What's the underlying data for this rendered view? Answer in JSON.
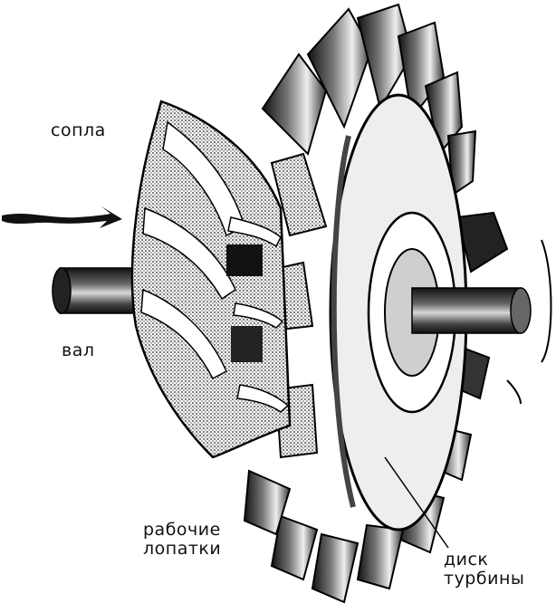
{
  "labels": {
    "nozzles": "сопла",
    "shaft": "вал",
    "blades_line1": "рабочие",
    "blades_line2": "лопатки",
    "disk_line1": "диск",
    "disk_line2": "турбины"
  },
  "colors": {
    "ink": "#111111",
    "paper": "#ffffff",
    "mid_gray": "#8a8a8a",
    "dark_gray": "#3a3a3a"
  }
}
